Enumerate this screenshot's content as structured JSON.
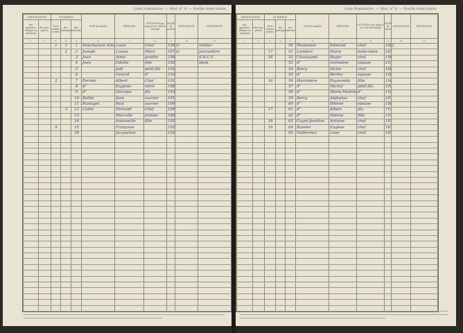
{
  "document": {
    "running_header": "Liste Nominative. — Mod. n° 8. — Feuille intercalaire",
    "columns": {
      "designation_group": "DÉSIGNATION",
      "numeros_group": "NUMÉROS",
      "quartiers": "des quartiers, villages ou hameaux",
      "rues": "des rues, places",
      "maisons": "de la maison (ordre)",
      "menages": "des ménages",
      "individus": "des individus",
      "nom": "NOM de famille",
      "prenoms": "PRÉNOMS",
      "situation": "SITUATION par rapport au chef de ménage",
      "annee": "ANNÉE de naissance",
      "nationalite": "NATIONALITÉ",
      "profession": "PROFESSION",
      "numbers": [
        "1",
        "2",
        "3",
        "4",
        "5",
        "6",
        "7",
        "8",
        "9",
        "10",
        "11"
      ]
    },
    "left_page_rows": [
      [
        "",
        "",
        "1",
        "1",
        "1",
        "Douchasson Aimé",
        "Louis",
        "Chef",
        "1905",
        "fr.",
        "rentier"
      ],
      [
        "",
        "",
        "",
        "2",
        "2",
        "Joseph",
        "Louise",
        "Mère",
        "1873",
        "fr.",
        "journalière"
      ],
      [
        "",
        "",
        "",
        "",
        "3",
        "Jean",
        "Aimé",
        "gendre",
        "1900",
        "",
        "S.N.C.F."
      ],
      [
        "",
        "",
        "",
        "",
        "4",
        "Jean",
        "Odette",
        "fille",
        "1921",
        "",
        "idem"
      ],
      [
        "",
        "",
        "",
        "",
        "5",
        "",
        "Joël",
        "petit-fils",
        "1929",
        "",
        ""
      ],
      [
        "",
        "",
        "",
        "",
        "6",
        "",
        "Gérard",
        "d°",
        "1935",
        "",
        ""
      ],
      [
        "",
        "",
        "2",
        "",
        "7",
        "Ferréol",
        "Albert",
        "Chef",
        "1911",
        "",
        ""
      ],
      [
        "",
        "",
        "",
        "",
        "8",
        "d°",
        "Eugénie",
        "mère",
        "1886",
        "",
        ""
      ],
      [
        "",
        "",
        "",
        "",
        "9",
        "d°",
        "Georges",
        "fils",
        "1930",
        "",
        ""
      ],
      [
        "",
        "",
        "",
        "",
        "10",
        "Bottin",
        "Jean",
        "ouvrier",
        "1910",
        "",
        ""
      ],
      [
        "",
        "",
        "",
        "",
        "11",
        "Rastaget",
        "Paul",
        "ouvrier",
        "1903",
        "",
        ""
      ],
      [
        "",
        "",
        "",
        "3",
        "12",
        "Collet",
        "Fernand",
        "Chef",
        "1899",
        "",
        ""
      ],
      [
        "",
        "",
        "",
        "",
        "13",
        "",
        "Marcelle",
        "femme",
        "1898",
        "",
        ""
      ],
      [
        "",
        "",
        "",
        "",
        "14",
        "",
        "Antoinette",
        "fille",
        "1923",
        "",
        ""
      ],
      [
        "",
        "",
        "4",
        "",
        "15",
        "",
        "Françoise",
        "",
        "1928",
        "",
        ""
      ],
      [
        "",
        "",
        "",
        "",
        "16",
        "",
        "Jacqueline",
        "",
        "1929",
        "",
        ""
      ]
    ],
    "right_page_rows": [
      [
        "",
        "",
        "",
        "",
        "50",
        "Pessonnet",
        "Edmond",
        "chef",
        "1881",
        "f.",
        ""
      ],
      [
        "",
        "",
        "17",
        "",
        "51",
        "Lambert",
        "Marie",
        "belle-mère",
        "1870",
        "",
        ""
      ],
      [
        "",
        "",
        "18",
        "",
        "52",
        "Chassignet",
        "Roger",
        "chef",
        "1908",
        "",
        ""
      ],
      [
        "",
        "",
        "",
        "",
        "53",
        "d°",
        "Germaine",
        "épouse",
        "1912",
        "",
        ""
      ],
      [
        "",
        "",
        "",
        "",
        "54",
        "Barry",
        "Victor",
        "chef",
        "1890",
        "",
        ""
      ],
      [
        "",
        "",
        "",
        "",
        "55",
        "d°",
        "Berthe",
        "épouse",
        "1891",
        "",
        ""
      ],
      [
        "",
        "",
        "16",
        "",
        "56",
        "Martinière",
        "Raymonde",
        "fille",
        "1909",
        "",
        ""
      ],
      [
        "",
        "",
        "",
        "",
        "57",
        "d°",
        "Michel",
        "petit-fils",
        "1930",
        "",
        ""
      ],
      [
        "",
        "",
        "",
        "",
        "58",
        "d°",
        "Marie-Madeleine",
        "d°",
        "1933",
        "",
        ""
      ],
      [
        "",
        "",
        "",
        "",
        "59",
        "Barry",
        "Alphonse",
        "chef",
        "1878",
        "",
        ""
      ],
      [
        "",
        "",
        "",
        "",
        "60",
        "d°",
        "Hélène",
        "épouse",
        "1881",
        "",
        ""
      ],
      [
        "",
        "",
        "17",
        "",
        "61",
        "d°",
        "Albert",
        "fils",
        "1910",
        "",
        ""
      ],
      [
        "",
        "",
        "",
        "",
        "62",
        "d°",
        "Hélène",
        "fille",
        "1914",
        "",
        ""
      ],
      [
        "",
        "",
        "18",
        "",
        "63",
        "Guyot-Jourdan",
        "Antoine",
        "chef",
        "1878",
        "",
        ""
      ],
      [
        "",
        "",
        "19",
        "",
        "64",
        "Roseler",
        "Eugène",
        "chef",
        "1875",
        "",
        ""
      ],
      [
        "",
        "",
        "",
        "",
        "65",
        "Vuillermoz",
        "Léon",
        "chef",
        "1878",
        "",
        ""
      ]
    ]
  }
}
